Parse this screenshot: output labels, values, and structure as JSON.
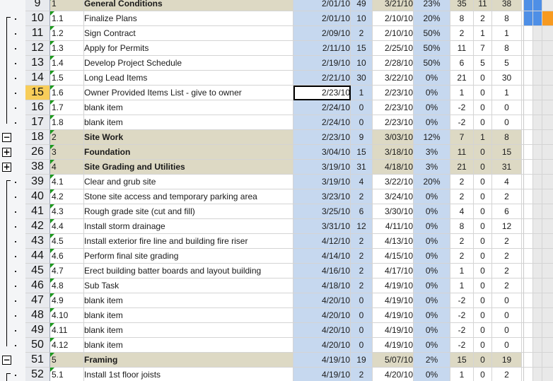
{
  "rows": [
    {
      "n": "9",
      "id": "1",
      "name": "General Conditions",
      "start": "2/01/10",
      "dur": "49",
      "finish": "3/21/10",
      "pct": "23%",
      "a": "35",
      "b": "11",
      "c": "38",
      "summary": true,
      "group": "none"
    },
    {
      "n": "10",
      "id": "1.1",
      "name": "Finalize Plans",
      "start": "2/01/10",
      "dur": "10",
      "finish": "2/10/10",
      "pct": "20%",
      "a": "8",
      "b": "2",
      "c": "8",
      "summary": false
    },
    {
      "n": "11",
      "id": "1.2",
      "name": "Sign Contract",
      "start": "2/09/10",
      "dur": "2",
      "finish": "2/10/10",
      "pct": "50%",
      "a": "2",
      "b": "1",
      "c": "1",
      "summary": false
    },
    {
      "n": "12",
      "id": "1.3",
      "name": "Apply for Permits",
      "start": "2/11/10",
      "dur": "15",
      "finish": "2/25/10",
      "pct": "50%",
      "a": "11",
      "b": "7",
      "c": "8",
      "summary": false
    },
    {
      "n": "13",
      "id": "1.4",
      "name": "Develop Project Schedule",
      "start": "2/19/10",
      "dur": "10",
      "finish": "2/28/10",
      "pct": "50%",
      "a": "6",
      "b": "5",
      "c": "5",
      "summary": false
    },
    {
      "n": "14",
      "id": "1.5",
      "name": "Long Lead Items",
      "start": "2/21/10",
      "dur": "30",
      "finish": "3/22/10",
      "pct": "0%",
      "a": "21",
      "b": "0",
      "c": "30",
      "summary": false
    },
    {
      "n": "15",
      "id": "1.6",
      "name": "Owner Provided Items List - give to owner",
      "start": "2/23/10",
      "dur": "1",
      "finish": "2/23/10",
      "pct": "0%",
      "a": "1",
      "b": "0",
      "c": "1",
      "summary": false,
      "selected": true
    },
    {
      "n": "16",
      "id": "1.7",
      "name": "blank item",
      "start": "2/24/10",
      "dur": "0",
      "finish": "2/23/10",
      "pct": "0%",
      "a": "-2",
      "b": "0",
      "c": "0",
      "summary": false
    },
    {
      "n": "17",
      "id": "1.8",
      "name": "blank item",
      "start": "2/24/10",
      "dur": "0",
      "finish": "2/23/10",
      "pct": "0%",
      "a": "-2",
      "b": "0",
      "c": "0",
      "summary": false
    },
    {
      "n": "18",
      "id": "2",
      "name": "Site Work",
      "start": "2/23/10",
      "dur": "9",
      "finish": "3/03/10",
      "pct": "12%",
      "a": "7",
      "b": "1",
      "c": "8",
      "summary": true
    },
    {
      "n": "26",
      "id": "3",
      "name": "Foundation",
      "start": "3/04/10",
      "dur": "15",
      "finish": "3/18/10",
      "pct": "3%",
      "a": "11",
      "b": "0",
      "c": "15",
      "summary": true
    },
    {
      "n": "38",
      "id": "4",
      "name": "Site Grading and Utilities",
      "start": "3/19/10",
      "dur": "31",
      "finish": "4/18/10",
      "pct": "3%",
      "a": "21",
      "b": "0",
      "c": "31",
      "summary": true
    },
    {
      "n": "39",
      "id": "4.1",
      "name": "Clear and grub site",
      "start": "3/19/10",
      "dur": "4",
      "finish": "3/22/10",
      "pct": "20%",
      "a": "2",
      "b": "0",
      "c": "4",
      "summary": false
    },
    {
      "n": "40",
      "id": "4.2",
      "name": "Stone site access and temporary parking area",
      "start": "3/23/10",
      "dur": "2",
      "finish": "3/24/10",
      "pct": "0%",
      "a": "2",
      "b": "0",
      "c": "2",
      "summary": false
    },
    {
      "n": "41",
      "id": "4.3",
      "name": "Rough grade site (cut and fill)",
      "start": "3/25/10",
      "dur": "6",
      "finish": "3/30/10",
      "pct": "0%",
      "a": "4",
      "b": "0",
      "c": "6",
      "summary": false
    },
    {
      "n": "42",
      "id": "4.4",
      "name": "Install storm drainage",
      "start": "3/31/10",
      "dur": "12",
      "finish": "4/11/10",
      "pct": "0%",
      "a": "8",
      "b": "0",
      "c": "12",
      "summary": false
    },
    {
      "n": "43",
      "id": "4.5",
      "name": "Install exterior fire line and building fire riser",
      "start": "4/12/10",
      "dur": "2",
      "finish": "4/13/10",
      "pct": "0%",
      "a": "2",
      "b": "0",
      "c": "2",
      "summary": false
    },
    {
      "n": "44",
      "id": "4.6",
      "name": "Perform final site grading",
      "start": "4/14/10",
      "dur": "2",
      "finish": "4/15/10",
      "pct": "0%",
      "a": "2",
      "b": "0",
      "c": "2",
      "summary": false
    },
    {
      "n": "45",
      "id": "4.7",
      "name": "Erect building batter boards and layout building",
      "start": "4/16/10",
      "dur": "2",
      "finish": "4/17/10",
      "pct": "0%",
      "a": "1",
      "b": "0",
      "c": "2",
      "summary": false
    },
    {
      "n": "46",
      "id": "4.8",
      "name": "Sub Task",
      "start": "4/18/10",
      "dur": "2",
      "finish": "4/19/10",
      "pct": "0%",
      "a": "1",
      "b": "0",
      "c": "2",
      "summary": false
    },
    {
      "n": "47",
      "id": "4.9",
      "name": "blank item",
      "start": "4/20/10",
      "dur": "0",
      "finish": "4/19/10",
      "pct": "0%",
      "a": "-2",
      "b": "0",
      "c": "0",
      "summary": false
    },
    {
      "n": "48",
      "id": "4.10",
      "name": "blank item",
      "start": "4/20/10",
      "dur": "0",
      "finish": "4/19/10",
      "pct": "0%",
      "a": "-2",
      "b": "0",
      "c": "0",
      "summary": false
    },
    {
      "n": "49",
      "id": "4.11",
      "name": "blank item",
      "start": "4/20/10",
      "dur": "0",
      "finish": "4/19/10",
      "pct": "0%",
      "a": "-2",
      "b": "0",
      "c": "0",
      "summary": false
    },
    {
      "n": "50",
      "id": "4.12",
      "name": "blank item",
      "start": "4/20/10",
      "dur": "0",
      "finish": "4/19/10",
      "pct": "0%",
      "a": "-2",
      "b": "0",
      "c": "0",
      "summary": false
    },
    {
      "n": "51",
      "id": "5",
      "name": "Framing",
      "start": "4/19/10",
      "dur": "19",
      "finish": "5/07/10",
      "pct": "2%",
      "a": "15",
      "b": "0",
      "c": "19",
      "summary": true
    },
    {
      "n": "52",
      "id": "5.1",
      "name": "Install 1st floor joists",
      "start": "4/19/10",
      "dur": "2",
      "finish": "4/20/10",
      "pct": "0%",
      "a": "1",
      "b": "0",
      "c": "2",
      "summary": false
    }
  ],
  "outline": {
    "collapse_symbol": "−",
    "expand_symbol": "+",
    "buttons": [
      {
        "row": 9,
        "symbol": "−"
      },
      {
        "row": 10,
        "symbol": "+"
      },
      {
        "row": 11,
        "symbol": "+"
      },
      {
        "row": 24,
        "symbol": "−"
      }
    ]
  },
  "colors": {
    "summary_fill": "#ddd9c4",
    "date_fill": "#c6d8ef",
    "selected_row_header": "#f7cd5a",
    "gantt_bar": "#4e8fe6",
    "gantt_today": "#f79a21",
    "id_marker": "#1c9a1c"
  }
}
